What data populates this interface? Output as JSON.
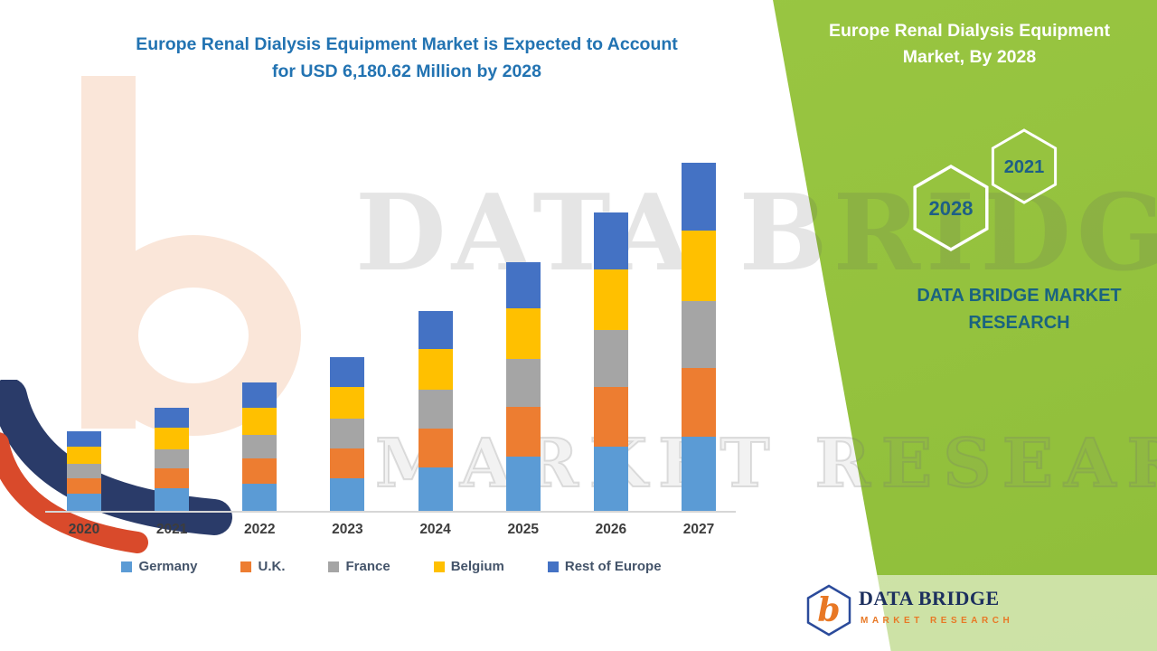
{
  "chart": {
    "title_line1": "Europe Renal Dialysis Equipment Market is Expected to Account",
    "title_line2": "for USD 6,180.62 Million by 2028"
  },
  "chart_data": {
    "type": "bar",
    "stacked": true,
    "title": "Europe Renal Dialysis Equipment Market is Expected to Account for USD 6,180.62 Million by 2028",
    "categories": [
      "2020",
      "2021",
      "2022",
      "2023",
      "2024",
      "2025",
      "2026",
      "2027"
    ],
    "series": [
      {
        "name": "Germany",
        "color": "#5B9BD5",
        "values": [
          19,
          25,
          30,
          36,
          48,
          60,
          71,
          82
        ]
      },
      {
        "name": "U.K.",
        "color": "#ED7D31",
        "values": [
          17,
          22,
          28,
          33,
          43,
          54,
          65,
          75
        ]
      },
      {
        "name": "France",
        "color": "#A5A5A5",
        "values": [
          16,
          21,
          26,
          32,
          42,
          53,
          63,
          74
        ]
      },
      {
        "name": "Belgium",
        "color": "#FFC000",
        "values": [
          19,
          24,
          29,
          35,
          45,
          56,
          67,
          77
        ]
      },
      {
        "name": "Rest of Europe",
        "color": "#4472C4",
        "values": [
          17,
          22,
          28,
          33,
          42,
          51,
          62,
          75
        ]
      }
    ],
    "xlabel": "",
    "ylabel": "",
    "value_units": "relative stacked height (y-axis unlabeled in source image)",
    "legend_position": "bottom",
    "grid": false
  },
  "side_panel": {
    "title_line1": "Europe Renal Dialysis Equipment",
    "title_line2": "Market, By 2028",
    "hexagon_top": "2021",
    "hexagon_bottom": "2028",
    "brand_line1": "DATA BRIDGE MARKET",
    "brand_line2": "RESEARCH",
    "panel_color": "#95C23E",
    "text_color": "#1E5F86"
  },
  "watermark": {
    "line1": "DATA BRIDGE",
    "line2": "MARKET RESEARCH"
  },
  "footer_logo": {
    "letter": "b",
    "name": "DATA BRIDGE",
    "tagline": "MARKET RESEARCH"
  },
  "colors": {
    "chart_title": "#2273B2",
    "germany": "#5B9BD5",
    "uk": "#ED7D31",
    "france": "#A5A5A5",
    "belgium": "#FFC000",
    "rest_of_europe": "#4472C4",
    "green_panel": "#95C23E",
    "axis_line": "#D6D6D6"
  }
}
